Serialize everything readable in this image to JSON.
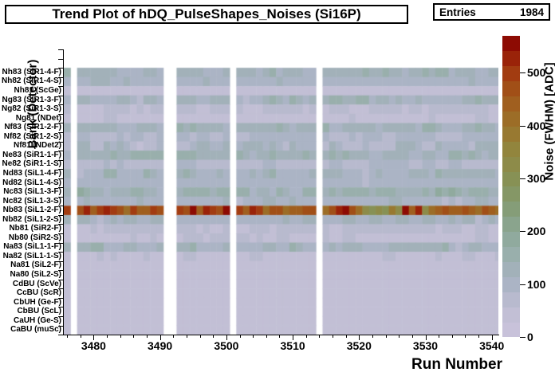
{
  "title": "Trend Plot of hDQ_PulseShapes_Noises (Si16P)",
  "stats": {
    "label": "Entries",
    "value": "1984"
  },
  "x_axis": {
    "title": "Run Number",
    "min": 3475.5,
    "max": 3541,
    "major_ticks": [
      3480,
      3490,
      3500,
      3510,
      3520,
      3530,
      3540
    ],
    "minor_tick_step": 2
  },
  "y_axis": {
    "title": "Bank (Detector)",
    "empty_top_bins": 2
  },
  "z_axis": {
    "title": "Noise (FWHM) [ADC]",
    "ticks": [
      0,
      100,
      200,
      300,
      400,
      500
    ],
    "max": 570,
    "levels": 20
  },
  "palette_stops": [
    [
      0,
      "#cbc4dc"
    ],
    [
      55,
      "#bfbdd3"
    ],
    [
      105,
      "#a9b3c3"
    ],
    [
      150,
      "#9bb0af"
    ],
    [
      200,
      "#8ca897"
    ],
    [
      250,
      "#849b72"
    ],
    [
      300,
      "#879155"
    ],
    [
      355,
      "#92853e"
    ],
    [
      400,
      "#9b732b"
    ],
    [
      455,
      "#a1591b"
    ],
    [
      505,
      "#a2380f"
    ],
    [
      545,
      "#931305"
    ],
    [
      570,
      "#850000"
    ]
  ],
  "chart_data": {
    "type": "heatmap",
    "title": "Trend Plot of hDQ_PulseShapes_Noises (Si16P)",
    "xlabel": "Run Number",
    "ylabel": "Bank (Detector)",
    "zlabel": "Noise (FWHM) [ADC]",
    "x_range": [
      3476,
      3541
    ],
    "empty_runs": [
      3477,
      3491,
      3492,
      3501,
      3514
    ],
    "data_run_blocks": [
      [
        3476,
        3476
      ],
      [
        3478,
        3490
      ],
      [
        3493,
        3500
      ],
      [
        3502,
        3513
      ],
      [
        3515,
        3541
      ]
    ],
    "rows": [
      {
        "label": "Nh83 (SiR1-4-F)",
        "base": 125,
        "amp": 30
      },
      {
        "label": "Nh82 (SiR1-4-S)",
        "base": 105,
        "amp": 12
      },
      {
        "label": "Nh81 (ScGe)",
        "base": 45,
        "amp": 10
      },
      {
        "label": "Ng83 (SiR1-3-F)",
        "base": 122,
        "amp": 32
      },
      {
        "label": "Ng82 (SiR1-3-S)",
        "base": 62,
        "amp": 12
      },
      {
        "label": "Ng81 (NDet)",
        "base": 50,
        "amp": 8
      },
      {
        "label": "Nf83 (SiR1-2-F)",
        "base": 122,
        "amp": 30
      },
      {
        "label": "Nf82 (SiR1-2-S)",
        "base": 85,
        "amp": 18
      },
      {
        "label": "Nf81 (NDet2)",
        "base": 95,
        "amp": 38
      },
      {
        "label": "Ne83 (SiR1-1-F)",
        "base": 132,
        "amp": 28
      },
      {
        "label": "Ne82 (SiR1-1-S)",
        "base": 80,
        "amp": 18
      },
      {
        "label": "Nd83 (SiL1-4-F)",
        "base": 118,
        "amp": 32
      },
      {
        "label": "Nd82 (SiL1-4-S)",
        "base": 95,
        "amp": 12
      },
      {
        "label": "Nc83 (SiL1-3-F)",
        "base": 142,
        "amp": 32
      },
      {
        "label": "Nc82 (SiL1-3-S)",
        "base": 105,
        "amp": 18
      },
      {
        "label": "Nb83 (SiL1-2-F)",
        "base": 470,
        "amp": 90,
        "hot": true
      },
      {
        "label": "Nb82 (SiL1-2-S)",
        "base": 110,
        "amp": 22
      },
      {
        "label": "Nb81 (SiR2-F)",
        "base": 60,
        "amp": 8
      },
      {
        "label": "Nb80 (SiR2-S)",
        "base": 55,
        "amp": 8
      },
      {
        "label": "Na83 (SiL1-1-F)",
        "base": 118,
        "amp": 30
      },
      {
        "label": "Na82 (SiL1-1-S)",
        "base": 55,
        "amp": 8
      },
      {
        "label": "Na81 (SiL2-F)",
        "base": 45,
        "amp": 6
      },
      {
        "label": "Na80 (SiL2-S)",
        "base": 45,
        "amp": 6
      },
      {
        "label": "CdBU (ScVe)",
        "base": 40,
        "amp": 5
      },
      {
        "label": "CcBU (ScR)",
        "base": 40,
        "amp": 5
      },
      {
        "label": "CbUH (Ge-F)",
        "base": 40,
        "amp": 5
      },
      {
        "label": "CbBU (ScL)",
        "base": 40,
        "amp": 5
      },
      {
        "label": "CaUH (Ge-S)",
        "base": 40,
        "amp": 5
      },
      {
        "label": "CaBU (muSc)",
        "base": 40,
        "amp": 5
      }
    ],
    "hot_row_values": [
      490,
      470,
      520,
      445,
      495,
      535,
      505,
      465,
      425,
      485,
      435,
      455,
      495,
      475,
      505,
      475,
      545,
      435,
      525,
      495,
      465,
      555,
      485,
      455,
      535,
      505,
      425,
      465,
      475,
      415,
      435,
      445,
      480,
      460,
      420,
      470,
      530,
      545,
      470,
      420,
      330,
      310,
      320,
      300,
      390,
      340,
      550,
      450,
      520,
      330,
      420,
      450,
      480,
      430,
      455,
      475,
      445,
      425,
      465,
      435,
      410
    ]
  }
}
